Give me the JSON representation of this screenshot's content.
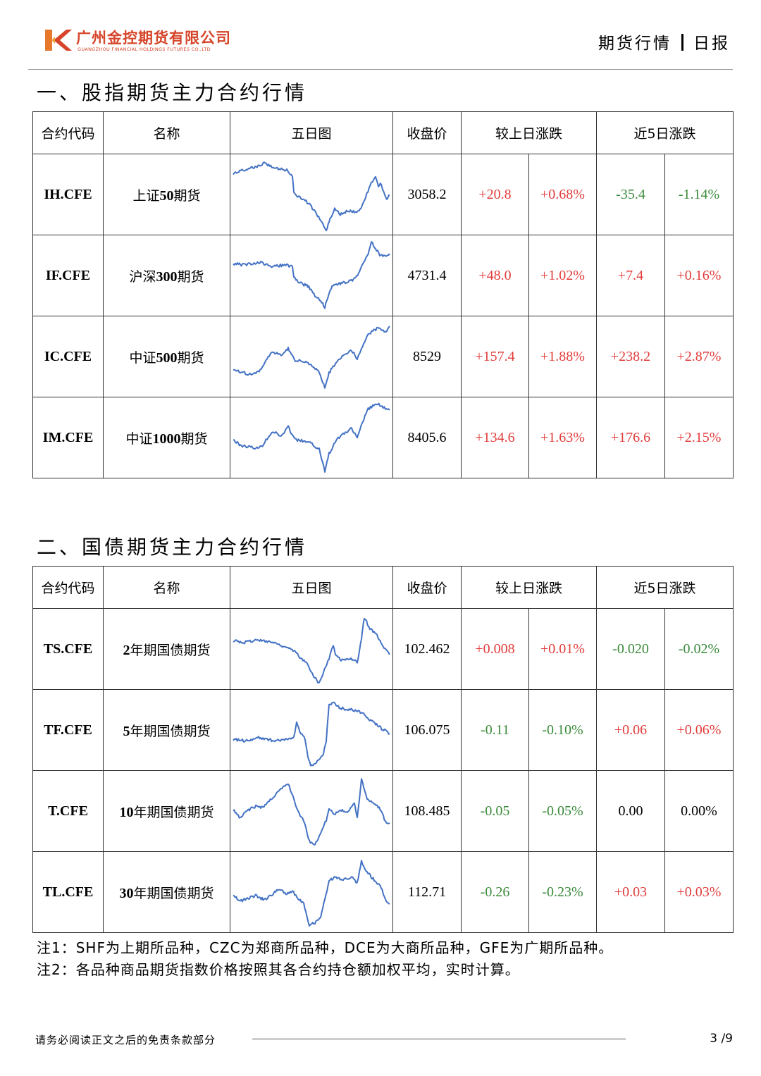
{
  "header": {
    "company_cn": "广州金控期货有限公司",
    "company_en": "GUANGZHOU FINANCIAL HOLDINGS FUTURES CO.,LTD",
    "right_a": "期货行情",
    "right_b": "日报"
  },
  "columns": {
    "code": "合约代码",
    "name": "名称",
    "chart": "五日图",
    "close": "收盘价",
    "day_change": "较上日涨跌",
    "five_day_change": "近5日涨跌"
  },
  "section1": {
    "title": "一、股指期货主力合约行情",
    "rows": [
      {
        "code": "IH.CFE",
        "name": "上证50期货",
        "close": "3058.2",
        "d_abs": "+20.8",
        "d_pct": "+0.68%",
        "w_abs": "-35.4",
        "w_pct": "-1.14%"
      },
      {
        "code": "IF.CFE",
        "name": "沪深300期货",
        "close": "4731.4",
        "d_abs": "+48.0",
        "d_pct": "+1.02%",
        "w_abs": "+7.4",
        "w_pct": "+0.16%"
      },
      {
        "code": "IC.CFE",
        "name": "中证500期货",
        "close": "8529",
        "d_abs": "+157.4",
        "d_pct": "+1.88%",
        "w_abs": "+238.2",
        "w_pct": "+2.87%"
      },
      {
        "code": "IM.CFE",
        "name": "中证1000期货",
        "close": "8405.6",
        "d_abs": "+134.6",
        "d_pct": "+1.63%",
        "w_abs": "+176.6",
        "w_pct": "+2.15%"
      }
    ]
  },
  "section2": {
    "title": "二、国债期货主力合约行情",
    "rows": [
      {
        "code": "TS.CFE",
        "name": "2年期国债期货",
        "close": "102.462",
        "d_abs": "+0.008",
        "d_pct": "+0.01%",
        "w_abs": "-0.020",
        "w_pct": "-0.02%"
      },
      {
        "code": "TF.CFE",
        "name": "5年期国债期货",
        "close": "106.075",
        "d_abs": "-0.11",
        "d_pct": "-0.10%",
        "w_abs": "+0.06",
        "w_pct": "+0.06%"
      },
      {
        "code": "T.CFE",
        "name": "10年期国债期货",
        "close": "108.485",
        "d_abs": "-0.05",
        "d_pct": "-0.05%",
        "w_abs": "0.00",
        "w_pct": "0.00%"
      },
      {
        "code": "TL.CFE",
        "name": "30年期国债期货",
        "close": "112.71",
        "d_abs": "-0.26",
        "d_pct": "-0.23%",
        "w_abs": "+0.03",
        "w_pct": "+0.03%"
      }
    ]
  },
  "sparkline_color": "#4472c4",
  "colors": {
    "up": "#e23b3b",
    "down": "#3a8a3a",
    "flat": "#000000",
    "brand": "#d6452a"
  },
  "notes": [
    "注1：SHF为上期所品种，CZC为郑商所品种，DCE为大商所品种，GFE为广期所品种。",
    "注2：各品种商品期货指数价格按照其各合约持仓额加权平均，实时计算。"
  ],
  "footer": {
    "disclaimer": "请务必阅读正文之后的免责条款部分",
    "page": "3 /9"
  }
}
